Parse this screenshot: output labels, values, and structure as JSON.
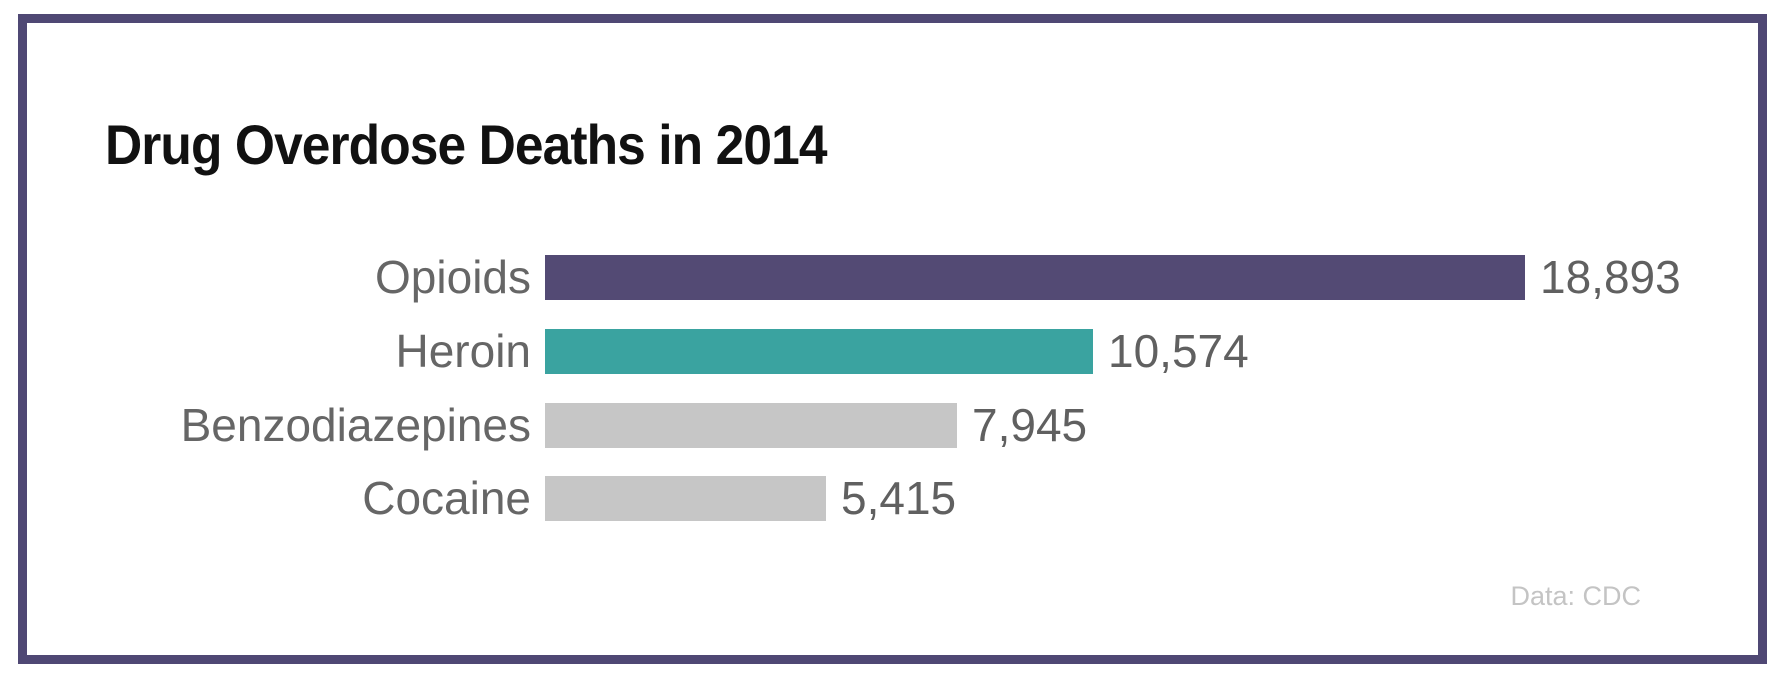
{
  "chart_data": {
    "type": "bar",
    "orientation": "horizontal",
    "title": "Drug Overdose Deaths in 2014",
    "categories": [
      "Opioids",
      "Heroin",
      "Benzodiazepines",
      "Cocaine"
    ],
    "values": [
      18893,
      10574,
      7945,
      5415
    ],
    "value_labels": [
      "18,893",
      "10,574",
      "7,945",
      "5,415"
    ],
    "xlim": [
      0,
      18893
    ],
    "grid": false,
    "legend": "none",
    "axes_shown": false,
    "source_note": "Data: CDC",
    "bar_colors": [
      "#534a74",
      "#3aa3a0",
      "#c6c6c6",
      "#c6c6c6"
    ],
    "colors": {
      "frame_border": "#4f4874",
      "title_text": "#111111",
      "category_label": "#666666",
      "value_label": "#606060",
      "source_text": "#c4c4c4",
      "background": "#ffffff"
    }
  }
}
